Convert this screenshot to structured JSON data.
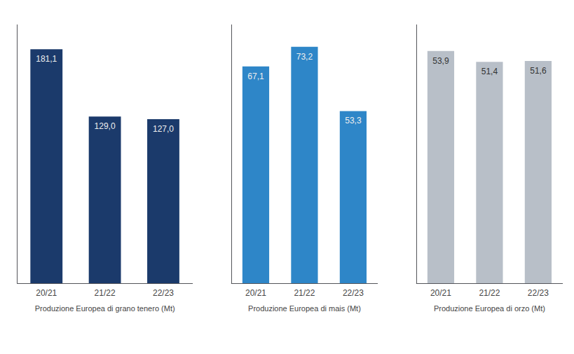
{
  "chart_data": [
    {
      "type": "bar",
      "xlabel": "Produzione Europea di grano tenero (Mt)",
      "categories": [
        "20/21",
        "21/22",
        "22/23"
      ],
      "values": [
        181.1,
        129.0,
        127.0
      ],
      "value_labels": [
        "181,1",
        "129,0",
        "127,0"
      ],
      "color": "#1b3a6b",
      "ylim": [
        0,
        200
      ],
      "tick_labels": "x",
      "data_labels": true,
      "grid": false
    },
    {
      "type": "bar",
      "xlabel": "Produzione Europea di mais (Mt)",
      "categories": [
        "20/21",
        "21/22",
        "22/23"
      ],
      "values": [
        67.1,
        73.2,
        53.3
      ],
      "value_labels": [
        "67,1",
        "73,2",
        "53,3"
      ],
      "color": "#2e86c8",
      "ylim": [
        0,
        80
      ],
      "tick_labels": "x",
      "data_labels": true,
      "grid": false
    },
    {
      "type": "bar",
      "xlabel": "Produzione Europea di orzo (Mt)",
      "categories": [
        "20/21",
        "21/22",
        "22/23"
      ],
      "values": [
        53.9,
        51.4,
        51.6
      ],
      "value_labels": [
        "53,9",
        "51,4",
        "51,6"
      ],
      "color": "#b8bfc8",
      "ylim": [
        0,
        60
      ],
      "tick_labels": "x",
      "data_labels": true,
      "grid": false
    }
  ]
}
